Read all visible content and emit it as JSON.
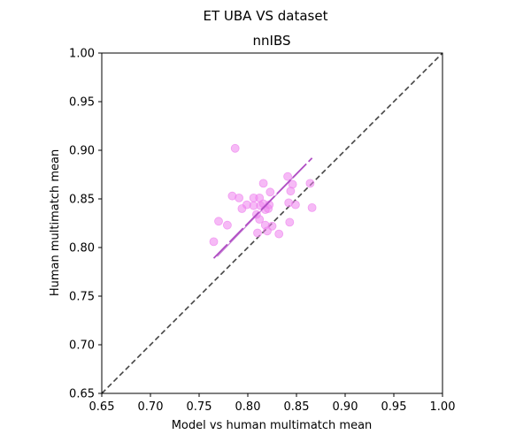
{
  "chart_data": {
    "type": "scatter",
    "suptitle": "ET UBA VS dataset",
    "title": "nnIBS",
    "xlabel": "Model vs human multimatch mean",
    "ylabel": "Human multimatch mean",
    "xlim": [
      0.65,
      1.0
    ],
    "ylim": [
      0.65,
      1.0
    ],
    "xticks": [
      "0.65",
      "0.70",
      "0.75",
      "0.80",
      "0.85",
      "0.90",
      "0.95",
      "1.00"
    ],
    "yticks": [
      "0.65",
      "0.70",
      "0.75",
      "0.80",
      "0.85",
      "0.90",
      "0.95",
      "1.00"
    ],
    "grid": false,
    "point_color": "#ee82ee",
    "fit_color": "#b04fc4",
    "diagonal_color": "#444444",
    "points": [
      {
        "x": 0.787,
        "y": 0.902
      },
      {
        "x": 0.765,
        "y": 0.806
      },
      {
        "x": 0.77,
        "y": 0.827
      },
      {
        "x": 0.779,
        "y": 0.823
      },
      {
        "x": 0.784,
        "y": 0.853
      },
      {
        "x": 0.791,
        "y": 0.851
      },
      {
        "x": 0.794,
        "y": 0.84
      },
      {
        "x": 0.799,
        "y": 0.844
      },
      {
        "x": 0.806,
        "y": 0.851
      },
      {
        "x": 0.806,
        "y": 0.843
      },
      {
        "x": 0.809,
        "y": 0.834
      },
      {
        "x": 0.81,
        "y": 0.815
      },
      {
        "x": 0.812,
        "y": 0.851
      },
      {
        "x": 0.813,
        "y": 0.843
      },
      {
        "x": 0.812,
        "y": 0.829
      },
      {
        "x": 0.816,
        "y": 0.845
      },
      {
        "x": 0.816,
        "y": 0.866
      },
      {
        "x": 0.818,
        "y": 0.823
      },
      {
        "x": 0.818,
        "y": 0.839
      },
      {
        "x": 0.82,
        "y": 0.817
      },
      {
        "x": 0.822,
        "y": 0.844
      },
      {
        "x": 0.823,
        "y": 0.857
      },
      {
        "x": 0.825,
        "y": 0.822
      },
      {
        "x": 0.821,
        "y": 0.84
      },
      {
        "x": 0.832,
        "y": 0.814
      },
      {
        "x": 0.841,
        "y": 0.873
      },
      {
        "x": 0.842,
        "y": 0.846
      },
      {
        "x": 0.843,
        "y": 0.826
      },
      {
        "x": 0.844,
        "y": 0.858
      },
      {
        "x": 0.846,
        "y": 0.865
      },
      {
        "x": 0.849,
        "y": 0.844
      },
      {
        "x": 0.864,
        "y": 0.866
      },
      {
        "x": 0.866,
        "y": 0.841
      }
    ],
    "fit_line": {
      "x": [
        0.765,
        0.866
      ],
      "y": [
        0.789,
        0.892
      ]
    },
    "diagonal": {
      "x": [
        0.65,
        1.0
      ],
      "y": [
        0.65,
        1.0
      ]
    }
  }
}
